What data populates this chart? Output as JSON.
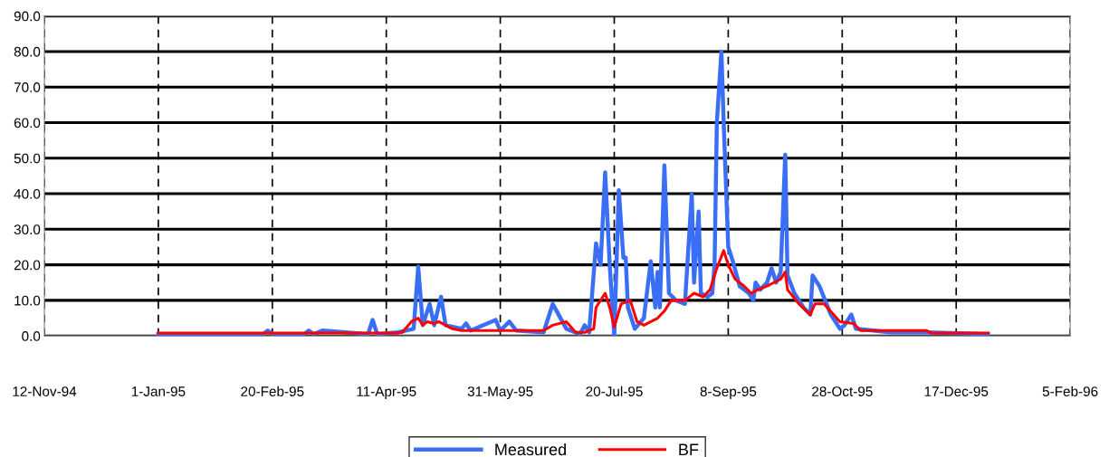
{
  "chart_data": {
    "type": "line",
    "xlim": [
      "1994-11-12",
      "1996-02-05"
    ],
    "xticks": [
      {
        "value": "1994-11-12",
        "label": "12-Nov-94"
      },
      {
        "value": "1995-01-01",
        "label": "1-Jan-95"
      },
      {
        "value": "1995-02-20",
        "label": "20-Feb-95"
      },
      {
        "value": "1995-04-11",
        "label": "11-Apr-95"
      },
      {
        "value": "1995-05-31",
        "label": "31-May-95"
      },
      {
        "value": "1995-07-20",
        "label": "20-Jul-95"
      },
      {
        "value": "1995-09-08",
        "label": "8-Sep-95"
      },
      {
        "value": "1995-10-28",
        "label": "28-Oct-95"
      },
      {
        "value": "1995-12-17",
        "label": "17-Dec-95"
      },
      {
        "value": "1996-02-05",
        "label": "5-Feb-96"
      }
    ],
    "ylim": [
      0,
      90
    ],
    "yticks": [
      {
        "value": 0,
        "label": "0.0"
      },
      {
        "value": 10,
        "label": "10.0"
      },
      {
        "value": 20,
        "label": "20.0"
      },
      {
        "value": 30,
        "label": "30.0"
      },
      {
        "value": 40,
        "label": "40.0"
      },
      {
        "value": 50,
        "label": "50.0"
      },
      {
        "value": 60,
        "label": "60.0"
      },
      {
        "value": 70,
        "label": "70.0"
      },
      {
        "value": 80,
        "label": "80.0"
      },
      {
        "value": 90,
        "label": "90.0"
      }
    ],
    "grid": true,
    "legend": "bottom",
    "marker": "none",
    "line_style": "solid",
    "series": [
      {
        "name": "Measured",
        "color": "#3a6ef5",
        "x": [
          "1995-01-01",
          "1995-02-16",
          "1995-02-18",
          "1995-02-20",
          "1995-03-06",
          "1995-03-08",
          "1995-03-10",
          "1995-03-14",
          "1995-04-03",
          "1995-04-05",
          "1995-04-07",
          "1995-04-16",
          "1995-04-23",
          "1995-04-25",
          "1995-04-27",
          "1995-04-30",
          "1995-05-02",
          "1995-05-05",
          "1995-05-07",
          "1995-05-14",
          "1995-05-16",
          "1995-05-18",
          "1995-05-29",
          "1995-05-31",
          "1995-06-04",
          "1995-06-07",
          "1995-06-19",
          "1995-06-23",
          "1995-06-29",
          "1995-07-05",
          "1995-07-07",
          "1995-07-09",
          "1995-07-12",
          "1995-07-14",
          "1995-07-16",
          "1995-07-18",
          "1995-07-20",
          "1995-07-22",
          "1995-07-24",
          "1995-07-25",
          "1995-07-26",
          "1995-07-29",
          "1995-08-02",
          "1995-08-05",
          "1995-08-07",
          "1995-08-08",
          "1995-08-09",
          "1995-08-11",
          "1995-08-13",
          "1995-08-16",
          "1995-08-20",
          "1995-08-23",
          "1995-08-24",
          "1995-08-26",
          "1995-08-27",
          "1995-08-30",
          "1995-09-01",
          "1995-09-02",
          "1995-09-03",
          "1995-09-05",
          "1995-09-06",
          "1995-09-08",
          "1995-09-10",
          "1995-09-13",
          "1995-09-17",
          "1995-09-19",
          "1995-09-20",
          "1995-09-22",
          "1995-09-25",
          "1995-09-27",
          "1995-09-29",
          "1995-10-01",
          "1995-10-03",
          "1995-10-04",
          "1995-10-07",
          "1995-10-11",
          "1995-10-14",
          "1995-10-15",
          "1995-10-18",
          "1995-10-23",
          "1995-10-27",
          "1995-10-29",
          "1995-11-01",
          "1995-11-03",
          "1995-11-18",
          "1995-12-04",
          "1995-12-31"
        ],
        "values": [
          0.5,
          0.5,
          1.5,
          0.5,
          0.5,
          1.5,
          0.5,
          1.5,
          0.5,
          4.5,
          0.5,
          1,
          2,
          19.5,
          3,
          9,
          3,
          11,
          3,
          2,
          3.5,
          1.5,
          4.5,
          1.5,
          4,
          1.5,
          1,
          9,
          2,
          0.5,
          3,
          1,
          26,
          20,
          46,
          20,
          0,
          41,
          22,
          22,
          8,
          2,
          5,
          21,
          8,
          18,
          8,
          48,
          12,
          10,
          9,
          40,
          15,
          35,
          12,
          11,
          12,
          20,
          60,
          80,
          60,
          25,
          21,
          14,
          12,
          10,
          15,
          13,
          15,
          19,
          15,
          18,
          51,
          17,
          12,
          8,
          6,
          17,
          14,
          6,
          2,
          3,
          6,
          2,
          1,
          1,
          0.5
        ]
      },
      {
        "name": "BF",
        "color": "#ff0000",
        "x": [
          "1995-01-01",
          "1995-04-16",
          "1995-04-18",
          "1995-04-22",
          "1995-04-25",
          "1995-04-27",
          "1995-04-29",
          "1995-05-02",
          "1995-05-04",
          "1995-05-07",
          "1995-05-10",
          "1995-05-14",
          "1995-06-19",
          "1995-06-23",
          "1995-06-29",
          "1995-07-03",
          "1995-07-07",
          "1995-07-11",
          "1995-07-12",
          "1995-07-16",
          "1995-07-18",
          "1995-07-20",
          "1995-07-23",
          "1995-07-27",
          "1995-07-30",
          "1995-08-02",
          "1995-08-08",
          "1995-08-11",
          "1995-08-14",
          "1995-08-20",
          "1995-08-24",
          "1995-08-28",
          "1995-08-31",
          "1995-09-03",
          "1995-09-06",
          "1995-09-08",
          "1995-09-11",
          "1995-09-15",
          "1995-09-18",
          "1995-09-21",
          "1995-09-25",
          "1995-09-28",
          "1995-10-01",
          "1995-10-03",
          "1995-10-04",
          "1995-10-09",
          "1995-10-14",
          "1995-10-16",
          "1995-10-20",
          "1995-10-27",
          "1995-11-02",
          "1995-11-05",
          "1995-12-04",
          "1995-12-06",
          "1995-12-31"
        ],
        "values": [
          0.8,
          0.8,
          1,
          4,
          5,
          3,
          4,
          3.5,
          4,
          3,
          2,
          1.5,
          1.5,
          3,
          4,
          1,
          1,
          2,
          8,
          12,
          8,
          2.5,
          9,
          10,
          4,
          3,
          5,
          7,
          10,
          10,
          12,
          11,
          13,
          19,
          24,
          20,
          16,
          14,
          12,
          13,
          14,
          15,
          16,
          18,
          13,
          9,
          6,
          9,
          9,
          4,
          3.5,
          1.5,
          1.5,
          0.8,
          0.8
        ]
      }
    ]
  }
}
